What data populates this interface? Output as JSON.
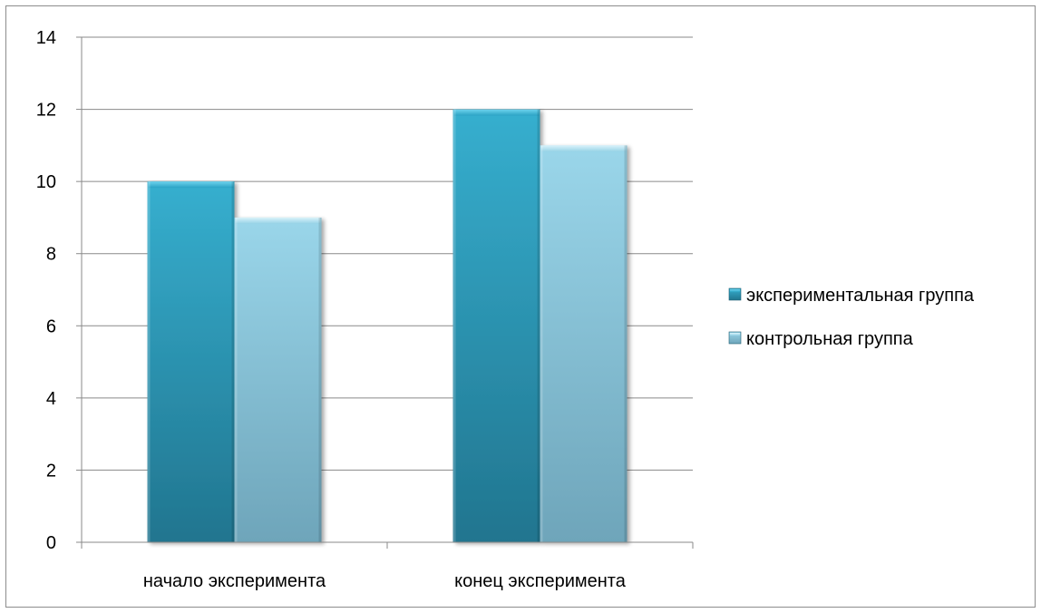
{
  "chart_data": {
    "type": "bar",
    "title": "",
    "xlabel": "",
    "ylabel": "",
    "categories": [
      "начало эксперимента",
      "конец эксперимента"
    ],
    "series": [
      {
        "name": "экспериментальная группа",
        "values": [
          10,
          12
        ],
        "color": "#2E9FBE"
      },
      {
        "name": "контрольная группа",
        "values": [
          9,
          11
        ],
        "color": "#8ECFE4"
      }
    ],
    "ylim": [
      0,
      14
    ],
    "yticks": [
      0,
      2,
      4,
      6,
      8,
      10,
      12,
      14
    ],
    "grid": true,
    "legend_position": "right"
  }
}
